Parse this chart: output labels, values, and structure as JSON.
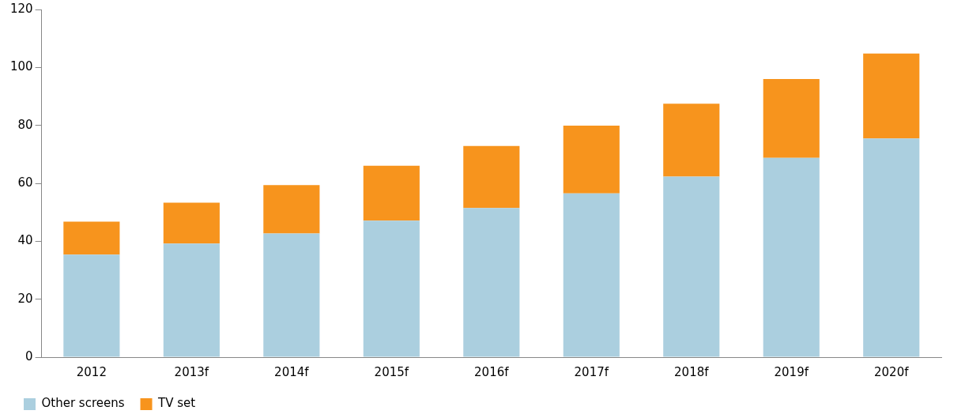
{
  "chart_data": {
    "type": "bar",
    "stacked": true,
    "categories": [
      "2012",
      "2013f",
      "2014f",
      "2015f",
      "2016f",
      "2017f",
      "2018f",
      "2019f",
      "2020f"
    ],
    "series": [
      {
        "name": "Other screens",
        "color": "#abcfdf",
        "values": [
          35.4,
          39.2,
          42.7,
          47.1,
          51.5,
          56.5,
          62.3,
          68.8,
          75.5
        ]
      },
      {
        "name": "TV set",
        "color": "#f7941d",
        "values": [
          11.4,
          14.1,
          16.7,
          19,
          21.4,
          23.4,
          25.2,
          27.2,
          29.3
        ]
      }
    ],
    "ylim": [
      0,
      120
    ],
    "yticks": [
      0,
      20,
      40,
      60,
      80,
      100,
      120
    ],
    "grid": false,
    "legend": "bottom left"
  }
}
